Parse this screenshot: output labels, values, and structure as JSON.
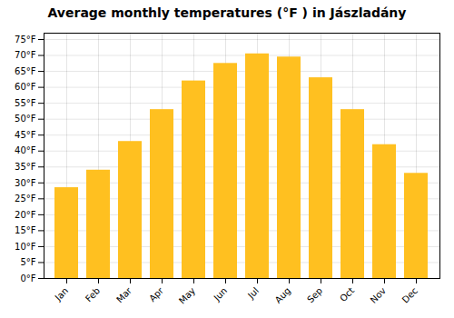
{
  "chart_data": {
    "type": "bar",
    "title": "Average monthly temperatures (°F ) in Jászladány",
    "categories": [
      "Jan",
      "Feb",
      "Mar",
      "Apr",
      "May",
      "Jun",
      "Jul",
      "Aug",
      "Sep",
      "Oct",
      "Nov",
      "Dec"
    ],
    "values": [
      28.5,
      34.0,
      43.0,
      53.0,
      62.0,
      67.5,
      70.5,
      69.5,
      63.0,
      53.0,
      42.0,
      33.0
    ],
    "color": "#FFC020",
    "ylim": [
      0,
      77
    ],
    "yticks": [
      {
        "value": 0,
        "label": "0°F"
      },
      {
        "value": 5,
        "label": "5°F"
      },
      {
        "value": 10,
        "label": "10°F"
      },
      {
        "value": 15,
        "label": "15°F"
      },
      {
        "value": 20,
        "label": "20°F"
      },
      {
        "value": 25,
        "label": "25°F"
      },
      {
        "value": 30,
        "label": "30°F"
      },
      {
        "value": 35,
        "label": "35°F"
      },
      {
        "value": 40,
        "label": "40°F"
      },
      {
        "value": 45,
        "label": "45°F"
      },
      {
        "value": 50,
        "label": "50°F"
      },
      {
        "value": 55,
        "label": "55°F"
      },
      {
        "value": 60,
        "label": "60°F"
      },
      {
        "value": 65,
        "label": "65°F"
      },
      {
        "value": 70,
        "label": "70°F"
      },
      {
        "value": 75,
        "label": "75°F"
      }
    ],
    "grid": true
  }
}
